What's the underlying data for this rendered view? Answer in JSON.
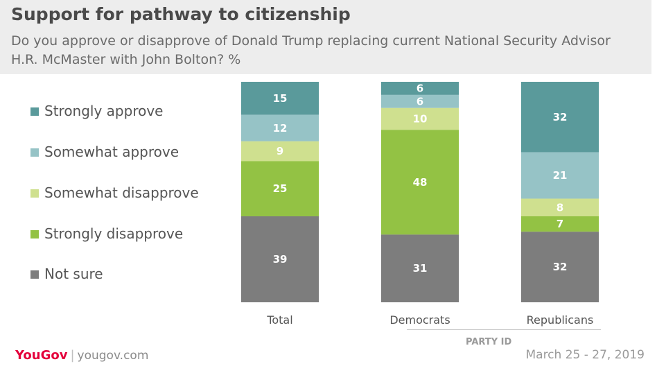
{
  "title": "Support for pathway to citizenship",
  "subtitle": "Do you approve or disapprove of Donald Trump replacing current National Security Advisor H.R. McMaster with John Bolton? %",
  "legend": [
    {
      "label": "Strongly approve",
      "color": "#5a9a9b"
    },
    {
      "label": "Somewhat approve",
      "color": "#96c3c6"
    },
    {
      "label": "Somewhat disapprove",
      "color": "#cfe08f"
    },
    {
      "label": "Strongly disapprove",
      "color": "#93c244"
    },
    {
      "label": "Not sure",
      "color": "#7d7d7d"
    }
  ],
  "group_label": "PARTY ID",
  "footer": {
    "brand": "YouGov",
    "separator": "|",
    "url": "yougov.com",
    "date": "March 25 - 27, 2019"
  },
  "chart_data": {
    "type": "bar",
    "stacked": true,
    "categories": [
      "Total",
      "Democrats",
      "Republicans"
    ],
    "series": [
      {
        "name": "Strongly approve",
        "values": [
          15,
          6,
          32
        ],
        "color": "#5a9a9b"
      },
      {
        "name": "Somewhat approve",
        "values": [
          12,
          6,
          21
        ],
        "color": "#96c3c6"
      },
      {
        "name": "Somewhat disapprove",
        "values": [
          9,
          10,
          8
        ],
        "color": "#cfe08f"
      },
      {
        "name": "Strongly disapprove",
        "values": [
          25,
          48,
          7
        ],
        "color": "#93c244"
      },
      {
        "name": "Not sure",
        "values": [
          39,
          31,
          32
        ],
        "color": "#7d7d7d"
      }
    ],
    "ylim": [
      0,
      100
    ],
    "grid": false,
    "legend_position": "left"
  }
}
